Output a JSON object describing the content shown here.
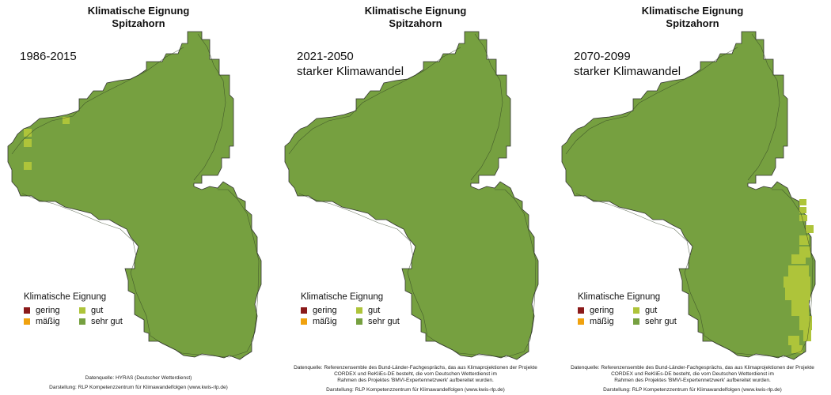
{
  "legend_colors": {
    "gering": "#8b1a1a",
    "massig": "#f0a20f",
    "gut": "#aec43a",
    "sehr_gut": "#76a040"
  },
  "panels": [
    {
      "title_line1": "Klimatische Eignung",
      "title_line2": "Spitzahorn",
      "period_line1": "1986-2015",
      "period_line2": "",
      "scenario": "baseline",
      "legend": {
        "title": "Klimatische Eignung",
        "gering": "gering",
        "massig": "mäßig",
        "gut": "gut",
        "sehr_gut": "sehr gut"
      },
      "source_lines": [
        "Datenquelle: HYRAS (Deutscher Wetterdienst)"
      ],
      "credit": "Darstellung: RLP Kompetenzzentrum für Klimawandelfolgen (www.kwis-rlp.de)"
    },
    {
      "title_line1": "Klimatische Eignung",
      "title_line2": "Spitzahorn",
      "period_line1": "2021-2050",
      "period_line2": "starker Klimawandel",
      "scenario": "mid",
      "legend": {
        "title": "Klimatische Eignung",
        "gering": "gering",
        "massig": "mäßig",
        "gut": "gut",
        "sehr_gut": "sehr gut"
      },
      "source_lines": [
        "Datenquelle: Referenzensemble des Bund-Länder-Fachgesprächs, das aus Klimaprojektionen der Projekte",
        "CORDEX und ReKliEs-DE besteht, die vom Deutschen Wetterdienst im",
        "Rahmen des Projektes 'BMVI-Expertennetzwerk' aufbereitet wurden."
      ],
      "credit": "Darstellung: RLP Kompetenzzentrum für Klimawandelfolgen (www.kwis-rlp.de)"
    },
    {
      "title_line1": "Klimatische Eignung",
      "title_line2": "Spitzahorn",
      "period_line1": "2070-2099",
      "period_line2": "starker Klimawandel",
      "scenario": "late",
      "legend": {
        "title": "Klimatische Eignung",
        "gering": "gering",
        "massig": "mäßig",
        "gut": "gut",
        "sehr_gut": "sehr gut"
      },
      "source_lines": [
        "Datenquelle: Referenzensemble des Bund-Länder-Fachgesprächs, das aus Klimaprojektionen der Projekte",
        "CORDEX und ReKliEs-DE besteht, die vom Deutschen Wetterdienst im",
        "Rahmen des Projektes 'BMVI-Expertennetzwerk' aufbereitet wurden."
      ],
      "credit": "Darstellung: RLP Kompetenzzentrum für Klimawandelfolgen (www.kwis-rlp.de)"
    }
  ]
}
